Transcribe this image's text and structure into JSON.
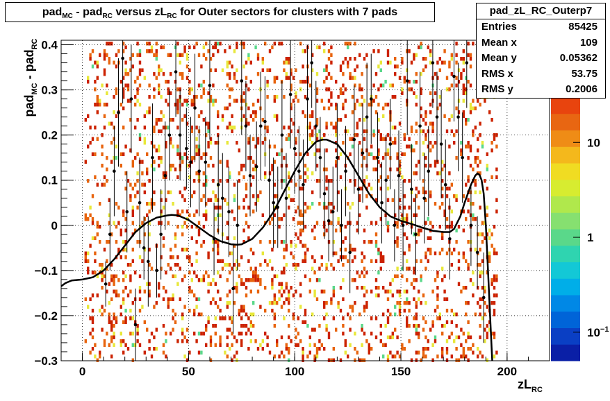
{
  "title": {
    "parts": [
      {
        "t": "pad",
        "sub": false
      },
      {
        "t": "MC",
        "sub": true
      },
      {
        "t": " - pad",
        "sub": false
      },
      {
        "t": "RC",
        "sub": true
      },
      {
        "t": " versus zL",
        "sub": false
      },
      {
        "t": "RC",
        "sub": true
      },
      {
        "t": " for Outer sectors for clusters with 7 pads",
        "sub": false
      }
    ]
  },
  "stats": {
    "name": "pad_zL_RC_Outerp7",
    "rows": [
      {
        "label": "Entries",
        "value": "85425"
      },
      {
        "label": "Mean x",
        "value": "109"
      },
      {
        "label": "Mean y",
        "value": "0.05362"
      },
      {
        "label": "RMS x",
        "value": "53.75"
      },
      {
        "label": "RMS y",
        "value": "0.2006"
      }
    ]
  },
  "colors": {
    "palette": [
      "#0a1fa6",
      "#0a3fc4",
      "#0064d8",
      "#0088e6",
      "#00aee8",
      "#13c8d6",
      "#2fd4b0",
      "#5ad88a",
      "#86e070",
      "#b0e84c",
      "#d7ec30",
      "#f0dc22",
      "#f4b81c",
      "#ef8c16",
      "#e86612",
      "#e8440e"
    ],
    "fit_line": "#000000",
    "cell_red": "#cc2200",
    "cell_orange": "#e8640e",
    "cell_yellow": "#e8e83a"
  },
  "chart_data": {
    "type": "heatmap",
    "title": "pad_MC - pad_RC versus zL_RC for Outer sectors for clusters with 7 pads",
    "xlabel": "zL_RC",
    "ylabel": "pad_MC - pad_RC",
    "xlim": [
      -10,
      220
    ],
    "ylim": [
      -0.3,
      0.41
    ],
    "log_z": true,
    "grid": true,
    "x_ticks": [
      {
        "v": 0,
        "label": "0"
      },
      {
        "v": 50,
        "label": "50"
      },
      {
        "v": 100,
        "label": "100"
      },
      {
        "v": 150,
        "label": "150"
      },
      {
        "v": 200,
        "label": "200"
      }
    ],
    "y_ticks": [
      {
        "v": -0.3,
        "label": "−0.3"
      },
      {
        "v": -0.2,
        "label": "−0.2"
      },
      {
        "v": -0.1,
        "label": "−0.1"
      },
      {
        "v": 0,
        "label": "0"
      },
      {
        "v": 0.1,
        "label": "0.1"
      },
      {
        "v": 0.2,
        "label": "0.2"
      },
      {
        "v": 0.3,
        "label": "0.3"
      },
      {
        "v": 0.4,
        "label": "0.4"
      }
    ],
    "z_ticks": [
      {
        "v": 0.1,
        "label": "10",
        "sup": "−1"
      },
      {
        "v": 1,
        "label": "1",
        "sup": ""
      },
      {
        "v": 10,
        "label": "10",
        "sup": ""
      }
    ],
    "zlim": [
      0.05,
      30
    ],
    "x_data_range": [
      1,
      195
    ],
    "fit_curve": {
      "x": [
        -10,
        -8,
        -5,
        0,
        5,
        10,
        15,
        20,
        25,
        30,
        35,
        40,
        42,
        45,
        50,
        55,
        60,
        65,
        70,
        73,
        75,
        80,
        85,
        90,
        95,
        100,
        105,
        110,
        113,
        115,
        120,
        125,
        130,
        135,
        140,
        145,
        150,
        155,
        160,
        165,
        170,
        173,
        175,
        178,
        180,
        183,
        185,
        186,
        187,
        188,
        189,
        190,
        191,
        192,
        193
      ],
      "y": [
        -0.135,
        -0.128,
        -0.122,
        -0.12,
        -0.115,
        -0.1,
        -0.075,
        -0.045,
        -0.015,
        0.005,
        0.017,
        0.022,
        0.023,
        0.022,
        0.012,
        -0.005,
        -0.022,
        -0.035,
        -0.042,
        -0.043,
        -0.042,
        -0.03,
        -0.005,
        0.03,
        0.075,
        0.12,
        0.16,
        0.185,
        0.19,
        0.19,
        0.18,
        0.15,
        0.11,
        0.07,
        0.04,
        0.02,
        0.01,
        0.003,
        -0.005,
        -0.012,
        -0.015,
        -0.015,
        -0.008,
        0.02,
        0.05,
        0.09,
        0.11,
        0.115,
        0.112,
        0.1,
        0.07,
        0.0,
        -0.1,
        -0.2,
        -0.3
      ]
    },
    "profile_points": [
      {
        "x": 11,
        "y": -0.13,
        "e": 0.05
      },
      {
        "x": 13,
        "y": -0.02,
        "e": 0.08
      },
      {
        "x": 15,
        "y": 0.12,
        "e": 0.1
      },
      {
        "x": 17,
        "y": 0.25,
        "e": 0.12
      },
      {
        "x": 19,
        "y": 0.37,
        "e": 0.1
      },
      {
        "x": 21,
        "y": 0.03,
        "e": 0.09
      },
      {
        "x": 23,
        "y": 0.28,
        "e": 0.12
      },
      {
        "x": 25,
        "y": -0.22,
        "e": 0.08
      },
      {
        "x": 27,
        "y": 0.05,
        "e": 0.1
      },
      {
        "x": 29,
        "y": -0.05,
        "e": 0.07
      },
      {
        "x": 31,
        "y": -0.08,
        "e": 0.1
      },
      {
        "x": 33,
        "y": 0.15,
        "e": 0.12
      },
      {
        "x": 35,
        "y": -0.1,
        "e": 0.06
      },
      {
        "x": 37,
        "y": -0.02,
        "e": 0.1
      },
      {
        "x": 39,
        "y": 0.11,
        "e": 0.12
      },
      {
        "x": 41,
        "y": 0.2,
        "e": 0.1
      },
      {
        "x": 44,
        "y": 0.34,
        "e": 0.1
      },
      {
        "x": 46,
        "y": 0.2,
        "e": 0.1
      },
      {
        "x": 49,
        "y": 0.17,
        "e": 0.09
      },
      {
        "x": 51,
        "y": 0.14,
        "e": 0.1
      },
      {
        "x": 53,
        "y": 0.26,
        "e": 0.12
      },
      {
        "x": 55,
        "y": 0.12,
        "e": 0.1
      },
      {
        "x": 58,
        "y": 0.14,
        "e": 0.1
      },
      {
        "x": 60,
        "y": 0.31,
        "e": 0.12
      },
      {
        "x": 62,
        "y": -0.03,
        "e": 0.08
      },
      {
        "x": 64,
        "y": 0.09,
        "e": 0.11
      },
      {
        "x": 66,
        "y": 0.06,
        "e": 0.1
      },
      {
        "x": 69,
        "y": 0.03,
        "e": 0.1
      },
      {
        "x": 71,
        "y": -0.14,
        "e": 0.1
      },
      {
        "x": 73,
        "y": 0.0,
        "e": 0.1
      },
      {
        "x": 75,
        "y": 0.32,
        "e": 0.12
      },
      {
        "x": 77,
        "y": 0.22,
        "e": 0.1
      },
      {
        "x": 79,
        "y": 0.11,
        "e": 0.09
      },
      {
        "x": 82,
        "y": 0.13,
        "e": 0.1
      },
      {
        "x": 84,
        "y": 0.22,
        "e": 0.12
      },
      {
        "x": 86,
        "y": 0.23,
        "e": 0.1
      },
      {
        "x": 88,
        "y": 0.1,
        "e": 0.09
      },
      {
        "x": 90,
        "y": 0.05,
        "e": 0.1
      },
      {
        "x": 92,
        "y": 0.04,
        "e": 0.09
      },
      {
        "x": 94,
        "y": 0.2,
        "e": 0.12
      },
      {
        "x": 96,
        "y": 0.06,
        "e": 0.1
      },
      {
        "x": 98,
        "y": 0.29,
        "e": 0.12
      },
      {
        "x": 100,
        "y": 0.17,
        "e": 0.1
      },
      {
        "x": 102,
        "y": 0.12,
        "e": 0.1
      },
      {
        "x": 104,
        "y": 0.09,
        "e": 0.1
      },
      {
        "x": 106,
        "y": 0.28,
        "e": 0.12
      },
      {
        "x": 108,
        "y": 0.36,
        "e": 0.1
      },
      {
        "x": 110,
        "y": 0.22,
        "e": 0.1
      },
      {
        "x": 112,
        "y": 0.15,
        "e": 0.09
      },
      {
        "x": 114,
        "y": 0.07,
        "e": 0.1
      },
      {
        "x": 116,
        "y": 0.01,
        "e": 0.09
      },
      {
        "x": 118,
        "y": 0.03,
        "e": 0.1
      },
      {
        "x": 120,
        "y": 0.15,
        "e": 0.12
      },
      {
        "x": 122,
        "y": 0.0,
        "e": 0.08
      },
      {
        "x": 124,
        "y": 0.12,
        "e": 0.1
      },
      {
        "x": 126,
        "y": -0.06,
        "e": 0.09
      },
      {
        "x": 128,
        "y": 0.19,
        "e": 0.12
      },
      {
        "x": 130,
        "y": 0.08,
        "e": 0.1
      },
      {
        "x": 132,
        "y": 0.16,
        "e": 0.11
      },
      {
        "x": 134,
        "y": 0.24,
        "e": 0.12
      },
      {
        "x": 136,
        "y": 0.28,
        "e": 0.1
      },
      {
        "x": 139,
        "y": 0.15,
        "e": 0.1
      },
      {
        "x": 141,
        "y": 0.05,
        "e": 0.09
      },
      {
        "x": 143,
        "y": 0.1,
        "e": 0.1
      },
      {
        "x": 145,
        "y": 0.18,
        "e": 0.1
      },
      {
        "x": 147,
        "y": 0.0,
        "e": 0.08
      },
      {
        "x": 149,
        "y": 0.11,
        "e": 0.1
      },
      {
        "x": 151,
        "y": 0.0,
        "e": 0.1
      },
      {
        "x": 153,
        "y": 0.32,
        "e": 0.12
      },
      {
        "x": 155,
        "y": 0.08,
        "e": 0.1
      },
      {
        "x": 157,
        "y": -0.02,
        "e": 0.09
      },
      {
        "x": 159,
        "y": 0.22,
        "e": 0.12
      },
      {
        "x": 161,
        "y": 0.06,
        "e": 0.1
      },
      {
        "x": 163,
        "y": 0.12,
        "e": 0.1
      },
      {
        "x": 165,
        "y": 0.36,
        "e": 0.1
      },
      {
        "x": 167,
        "y": 0.24,
        "e": 0.1
      },
      {
        "x": 169,
        "y": 0.18,
        "e": 0.12
      },
      {
        "x": 171,
        "y": 0.09,
        "e": 0.1
      },
      {
        "x": 173,
        "y": -0.03,
        "e": 0.09
      },
      {
        "x": 175,
        "y": 0.33,
        "e": 0.1
      },
      {
        "x": 177,
        "y": 0.24,
        "e": 0.12
      },
      {
        "x": 179,
        "y": 0.15,
        "e": 0.1
      },
      {
        "x": 181,
        "y": 0.36,
        "e": 0.1
      },
      {
        "x": 183,
        "y": 0.0,
        "e": 0.09
      },
      {
        "x": 186,
        "y": -0.06,
        "e": 0.08
      },
      {
        "x": 189,
        "y": -0.16,
        "e": 0.1
      }
    ]
  }
}
